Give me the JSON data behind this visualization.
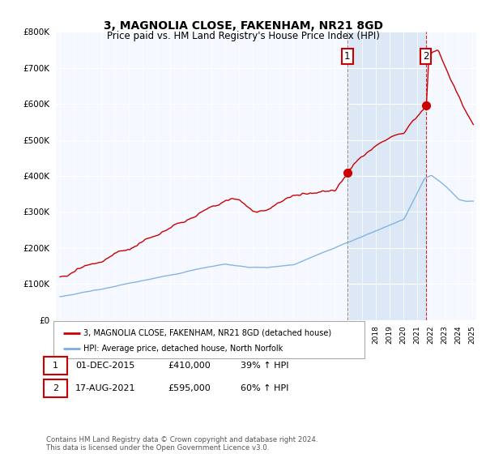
{
  "title": "3, MAGNOLIA CLOSE, FAKENHAM, NR21 8GD",
  "subtitle": "Price paid vs. HM Land Registry's House Price Index (HPI)",
  "legend_line1": "3, MAGNOLIA CLOSE, FAKENHAM, NR21 8GD (detached house)",
  "legend_line2": "HPI: Average price, detached house, North Norfolk",
  "annotation1_label": "1",
  "annotation1_date": "01-DEC-2015",
  "annotation1_price": "£410,000",
  "annotation1_hpi": "39% ↑ HPI",
  "annotation1_year": 2015.92,
  "annotation1_value": 410000,
  "annotation2_label": "2",
  "annotation2_date": "17-AUG-2021",
  "annotation2_price": "£595,000",
  "annotation2_hpi": "60% ↑ HPI",
  "annotation2_year": 2021.63,
  "annotation2_value": 595000,
  "red_color": "#cc0000",
  "blue_color": "#7aade0",
  "shade_color": "#dce8f5",
  "background_color": "#ffffff",
  "plot_bg_color": "#f5f8ff",
  "ylim": [
    0,
    800000
  ],
  "xlim_start": 1994.7,
  "xlim_end": 2025.3,
  "footer": "Contains HM Land Registry data © Crown copyright and database right 2024.\nThis data is licensed under the Open Government Licence v3.0."
}
